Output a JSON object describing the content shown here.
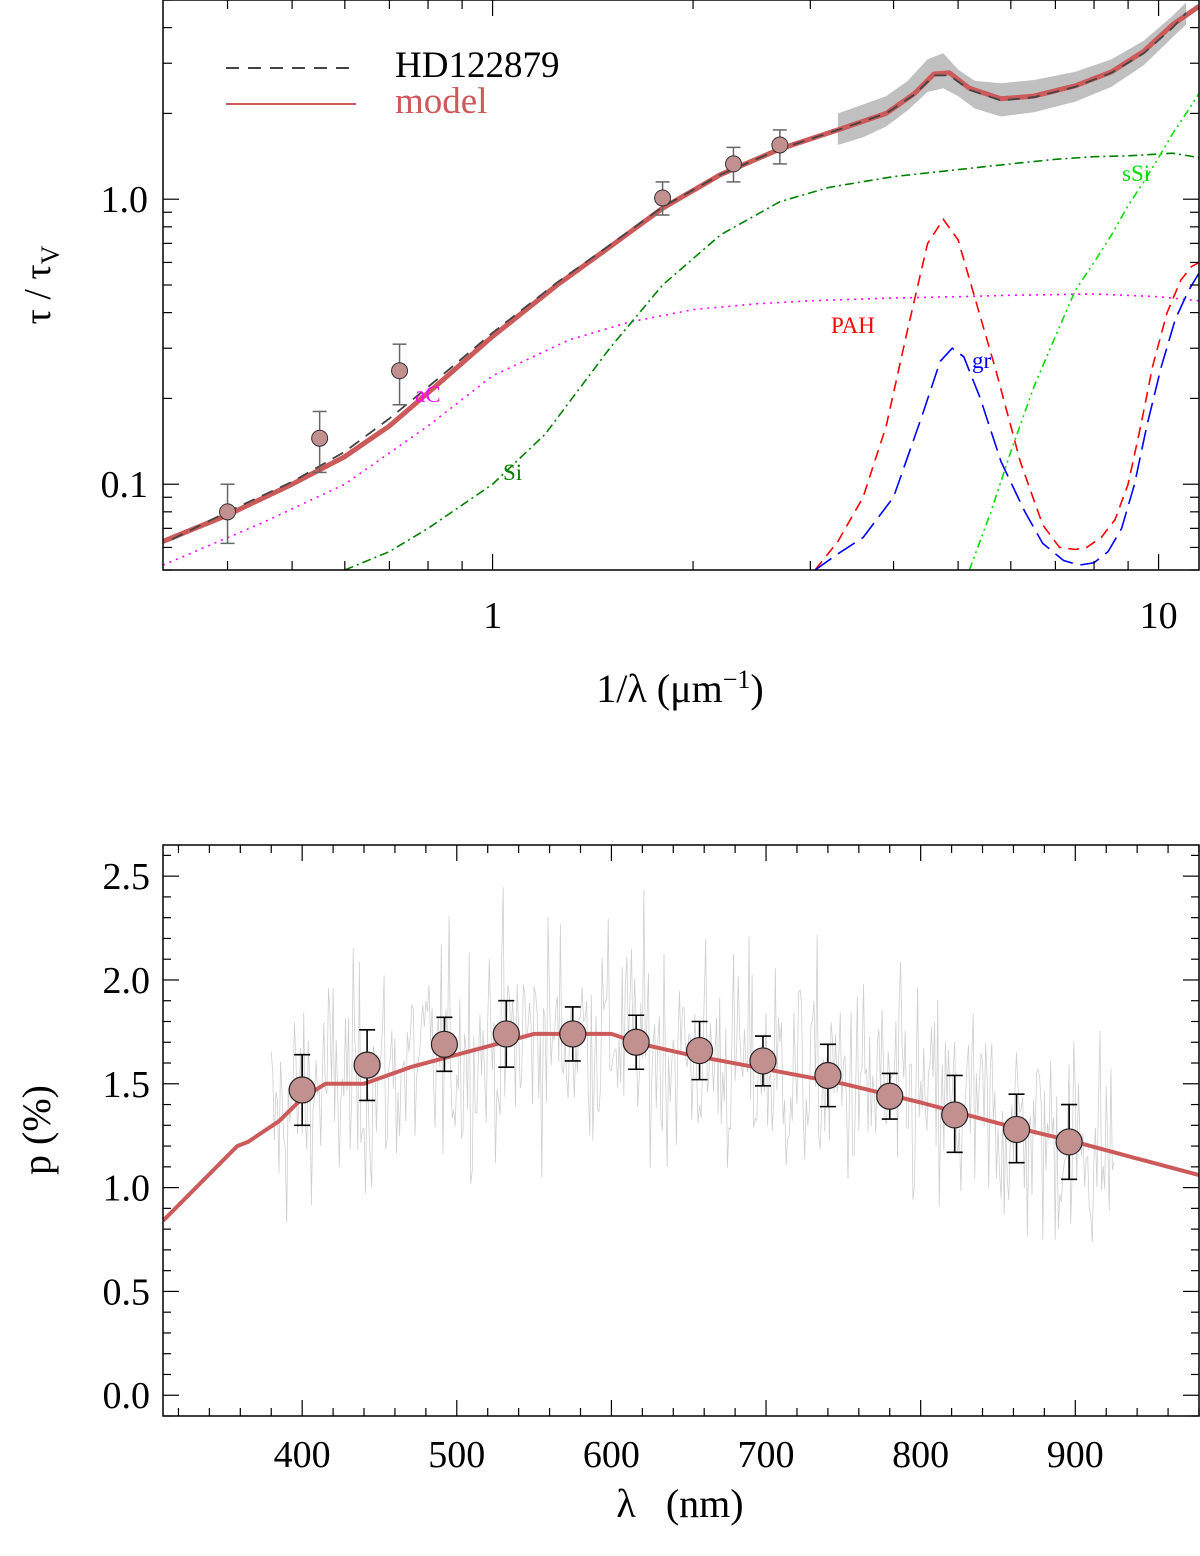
{
  "colors": {
    "model": "#cc5a5a",
    "model_band": "#c0c0c0",
    "observed": "#444444",
    "marker_fill": "#c39090",
    "aC": "#ff00ff",
    "Si": "#008000",
    "sSi": "#00dd00",
    "PAH": "#ff0000",
    "gr": "#0000ff",
    "spectrum": "#cfcfcf",
    "errbar_top": "#666666",
    "errbar_bottom": "#000000"
  },
  "chart_data": [
    {
      "type": "line",
      "scale": "log-log",
      "xlabel": "1/λ (μm⁻¹)",
      "ylabel": "τ / τV",
      "xlim": [
        0.32,
        11.5
      ],
      "ylim": [
        0.05,
        5.0
      ],
      "xticks": [
        {
          "value": 1,
          "label": "1"
        },
        {
          "value": 10,
          "label": "10"
        }
      ],
      "yticks": [
        {
          "value": 0.1,
          "label": "0.1"
        },
        {
          "value": 1.0,
          "label": "1.0"
        }
      ],
      "legend": {
        "position": "top-left",
        "entries": [
          {
            "label": "HD122879",
            "style": "dashed",
            "series": "observed"
          },
          {
            "label": "model",
            "style": "solid",
            "series": "model"
          }
        ]
      },
      "annotations": [
        {
          "text": "aC",
          "x": 1.05,
          "y": 0.24,
          "series": "aC"
        },
        {
          "text": "Si",
          "x": 1.3,
          "y": 0.075,
          "series": "Si"
        },
        {
          "text": "PAH",
          "x": 4.8,
          "y": 0.45,
          "series": "PAH"
        },
        {
          "text": "gr",
          "x": 6.6,
          "y": 0.33,
          "series": "gr"
        },
        {
          "text": "sSi",
          "x": 9.2,
          "y": 1.65,
          "series": "sSi"
        }
      ],
      "series": [
        {
          "name": "model",
          "x": [
            0.32,
            0.4,
            0.5,
            0.6,
            0.7,
            0.82,
            1.0,
            1.25,
            1.5,
            1.8,
            2.2,
            2.7,
            3.3,
            3.9,
            4.3,
            4.6,
            4.85,
            5.2,
            5.8,
            6.5,
            7.5,
            8.5,
            9.5,
            10.5,
            11.5
          ],
          "y": [
            0.063,
            0.078,
            0.1,
            0.125,
            0.16,
            0.22,
            0.33,
            0.5,
            0.68,
            0.93,
            1.22,
            1.5,
            1.75,
            2.0,
            2.35,
            2.75,
            2.78,
            2.45,
            2.25,
            2.3,
            2.5,
            2.8,
            3.3,
            4.1,
            4.75
          ]
        },
        {
          "name": "observed",
          "x": [
            0.33,
            0.4,
            0.5,
            0.6,
            0.7,
            0.82,
            1.0,
            1.25,
            1.5,
            1.8,
            2.2,
            2.7,
            3.3,
            3.9,
            4.3,
            4.6,
            4.85,
            5.2,
            5.8,
            6.5,
            7.5,
            8.5,
            9.5,
            10.5,
            11.0
          ],
          "y": [
            0.064,
            0.08,
            0.102,
            0.13,
            0.17,
            0.23,
            0.34,
            0.51,
            0.69,
            0.94,
            1.22,
            1.5,
            1.75,
            2.0,
            2.33,
            2.72,
            2.72,
            2.42,
            2.22,
            2.28,
            2.48,
            2.78,
            3.25,
            4.0,
            4.5
          ]
        },
        {
          "name": "observed_band",
          "x": [
            3.3,
            3.6,
            3.9,
            4.2,
            4.5,
            4.75,
            5.0,
            5.3,
            5.8,
            6.5,
            7.5,
            8.5,
            9.5,
            10.5,
            11.0
          ],
          "low": [
            1.55,
            1.65,
            1.8,
            2.05,
            2.38,
            2.45,
            2.3,
            2.08,
            1.95,
            2.02,
            2.2,
            2.48,
            2.95,
            3.7,
            4.1
          ],
          "high": [
            2.0,
            2.15,
            2.3,
            2.6,
            3.1,
            3.25,
            2.85,
            2.6,
            2.55,
            2.62,
            2.8,
            3.1,
            3.6,
            4.4,
            4.9
          ]
        },
        {
          "name": "aC",
          "x": [
            0.32,
            0.45,
            0.6,
            0.8,
            1.0,
            1.3,
            1.6,
            2.0,
            2.5,
            3.0,
            4.0,
            5.0,
            6.0,
            8.0,
            10.0,
            11.5
          ],
          "y": [
            0.052,
            0.073,
            0.1,
            0.16,
            0.24,
            0.32,
            0.37,
            0.41,
            0.43,
            0.44,
            0.45,
            0.455,
            0.46,
            0.465,
            0.455,
            0.44
          ]
        },
        {
          "name": "Si",
          "x": [
            0.6,
            0.7,
            0.8,
            1.0,
            1.2,
            1.5,
            1.8,
            2.2,
            2.7,
            3.2,
            4.0,
            5.0,
            6.0,
            7.0,
            8.0,
            9.0,
            10.5,
            11.5
          ],
          "y": [
            0.05,
            0.058,
            0.07,
            0.1,
            0.15,
            0.3,
            0.5,
            0.75,
            0.98,
            1.1,
            1.2,
            1.27,
            1.33,
            1.38,
            1.41,
            1.42,
            1.45,
            1.4
          ]
        },
        {
          "name": "sSi",
          "x": [
            5.2,
            5.6,
            6.0,
            6.5,
            7.0,
            7.5,
            8.0,
            8.5,
            9.0,
            9.5,
            10.0,
            10.5,
            11.0,
            11.5
          ],
          "y": [
            0.05,
            0.08,
            0.13,
            0.22,
            0.33,
            0.48,
            0.6,
            0.75,
            0.95,
            1.15,
            1.4,
            1.7,
            2.0,
            2.35
          ]
        },
        {
          "name": "PAH",
          "x": [
            3.05,
            3.3,
            3.6,
            3.9,
            4.2,
            4.5,
            4.75,
            5.0,
            5.3,
            5.7,
            6.2,
            6.7,
            7.1,
            7.5,
            7.8,
            8.2,
            8.6,
            9.0,
            9.4,
            9.8,
            10.3,
            10.8,
            11.2,
            11.5
          ],
          "y": [
            0.05,
            0.063,
            0.09,
            0.16,
            0.35,
            0.7,
            0.85,
            0.72,
            0.45,
            0.25,
            0.12,
            0.072,
            0.06,
            0.059,
            0.06,
            0.065,
            0.075,
            0.1,
            0.16,
            0.26,
            0.4,
            0.52,
            0.58,
            0.6
          ]
        },
        {
          "name": "gr",
          "x": [
            3.05,
            3.3,
            3.6,
            4.0,
            4.4,
            4.7,
            4.9,
            5.1,
            5.4,
            5.8,
            6.3,
            6.7,
            7.2,
            7.6,
            8.0,
            8.4,
            8.8,
            9.2,
            9.6,
            10.1,
            10.6,
            11.1,
            11.5
          ],
          "y": [
            0.05,
            0.057,
            0.065,
            0.09,
            0.17,
            0.27,
            0.3,
            0.28,
            0.2,
            0.12,
            0.08,
            0.062,
            0.054,
            0.052,
            0.053,
            0.058,
            0.07,
            0.1,
            0.16,
            0.26,
            0.38,
            0.48,
            0.55
          ]
        }
      ],
      "points": [
        {
          "x": 0.4,
          "y": 0.08,
          "err_low": 0.062,
          "err_high": 0.1
        },
        {
          "x": 0.55,
          "y": 0.145,
          "err_low": 0.11,
          "err_high": 0.18
        },
        {
          "x": 0.725,
          "y": 0.25,
          "err_low": 0.19,
          "err_high": 0.31
        },
        {
          "x": 1.8,
          "y": 1.01,
          "err_low": 0.88,
          "err_high": 1.15
        },
        {
          "x": 2.3,
          "y": 1.33,
          "err_low": 1.15,
          "err_high": 1.52
        },
        {
          "x": 2.7,
          "y": 1.55,
          "err_low": 1.33,
          "err_high": 1.75
        }
      ]
    },
    {
      "type": "line",
      "xlabel": "λ   (nm)",
      "ylabel": "p (%)",
      "xlim": [
        310,
        980
      ],
      "ylim": [
        -0.1,
        2.65
      ],
      "xticks": [
        {
          "value": 400,
          "label": "400"
        },
        {
          "value": 500,
          "label": "500"
        },
        {
          "value": 600,
          "label": "600"
        },
        {
          "value": 700,
          "label": "700"
        },
        {
          "value": 800,
          "label": "800"
        },
        {
          "value": 900,
          "label": "900"
        }
      ],
      "yticks": [
        {
          "value": 0.0,
          "label": "0.0"
        },
        {
          "value": 0.5,
          "label": "0.5"
        },
        {
          "value": 1.0,
          "label": "1.0"
        },
        {
          "value": 1.5,
          "label": "1.5"
        },
        {
          "value": 2.0,
          "label": "2.0"
        },
        {
          "value": 2.5,
          "label": "2.5"
        }
      ],
      "spectrum": {
        "x_range": [
          380,
          925
        ],
        "step": 1,
        "mean": "follows model",
        "noise_sd": 0.27
      },
      "series": [
        {
          "name": "model",
          "x": [
            310,
            350,
            358,
            365,
            385,
            400,
            415,
            440,
            470,
            500,
            530,
            550,
            600,
            620,
            650,
            700,
            750,
            800,
            850,
            900,
            950,
            980
          ],
          "y": [
            0.84,
            1.14,
            1.2,
            1.22,
            1.32,
            1.43,
            1.5,
            1.5,
            1.58,
            1.64,
            1.7,
            1.74,
            1.74,
            1.69,
            1.64,
            1.57,
            1.5,
            1.41,
            1.31,
            1.22,
            1.12,
            1.06
          ]
        }
      ],
      "points": [
        {
          "x": 400,
          "y": 1.47,
          "err_low": 1.3,
          "err_high": 1.64
        },
        {
          "x": 442,
          "y": 1.59,
          "err_low": 1.42,
          "err_high": 1.76
        },
        {
          "x": 492,
          "y": 1.69,
          "err_low": 1.56,
          "err_high": 1.82
        },
        {
          "x": 532,
          "y": 1.74,
          "err_low": 1.58,
          "err_high": 1.9
        },
        {
          "x": 575,
          "y": 1.74,
          "err_low": 1.61,
          "err_high": 1.87
        },
        {
          "x": 616,
          "y": 1.7,
          "err_low": 1.57,
          "err_high": 1.83
        },
        {
          "x": 657,
          "y": 1.66,
          "err_low": 1.52,
          "err_high": 1.8
        },
        {
          "x": 698,
          "y": 1.61,
          "err_low": 1.49,
          "err_high": 1.73
        },
        {
          "x": 740,
          "y": 1.54,
          "err_low": 1.39,
          "err_high": 1.69
        },
        {
          "x": 780,
          "y": 1.44,
          "err_low": 1.33,
          "err_high": 1.55
        },
        {
          "x": 822,
          "y": 1.35,
          "err_low": 1.17,
          "err_high": 1.54
        },
        {
          "x": 862,
          "y": 1.28,
          "err_low": 1.12,
          "err_high": 1.45
        },
        {
          "x": 896,
          "y": 1.22,
          "err_low": 1.04,
          "err_high": 1.4
        }
      ]
    }
  ]
}
